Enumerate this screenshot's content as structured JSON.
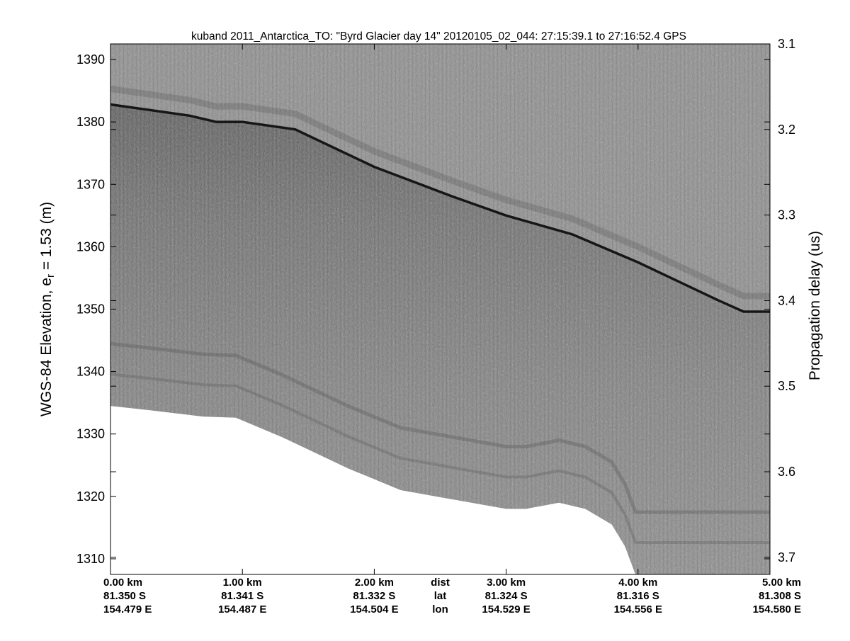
{
  "chart_data": {
    "type": "heatmap",
    "title": "kuband 2011_Antarctica_TO: \"Byrd Glacier day 14\"  20120105_02_044: 27:15:39.1 to 27:16:52.4 GPS",
    "ylabel_left_prefix": "WGS-84 Elevation, e",
    "ylabel_left_subscript": "r",
    "ylabel_left_suffix": " = 1.53 (m)",
    "ylabel_right": "Propagation delay (us)",
    "xlim_km": [
      0,
      5.0
    ],
    "ylim_left": [
      1307.5,
      1392.5
    ],
    "ylim_right": [
      3.1,
      3.72
    ],
    "yticks_left": [
      1310,
      1320,
      1330,
      1340,
      1350,
      1360,
      1370,
      1380,
      1390
    ],
    "yticks_right": [
      3.1,
      3.2,
      3.3,
      3.4,
      3.5,
      3.6,
      3.7
    ],
    "yticks_right_labels": [
      "3.1",
      "3.2",
      "3.3",
      "3.4",
      "3.5",
      "3.6",
      "3.7"
    ],
    "xticks": [
      {
        "km": 0.0,
        "dist": "0.00 km",
        "lat": "81.350 S",
        "lon": "154.479 E"
      },
      {
        "km": 1.0,
        "dist": "1.00 km",
        "lat": "81.341 S",
        "lon": "154.487 E"
      },
      {
        "km": 2.0,
        "dist": "2.00 km",
        "lat": "81.332 S",
        "lon": "154.504 E"
      },
      {
        "km": 3.0,
        "dist": "3.00 km",
        "lat": "81.324 S",
        "lon": "154.529 E"
      },
      {
        "km": 4.0,
        "dist": "4.00 km",
        "lat": "81.316 S",
        "lon": "154.556 E"
      },
      {
        "km": 5.0,
        "dist": "5.00 km",
        "lat": "81.308 S",
        "lon": "154.580 E"
      }
    ],
    "row_keys": {
      "km": 2.5,
      "dist": "dist",
      "lat": "lat",
      "lon": "lon"
    },
    "surface_elevation": [
      {
        "km": 0.0,
        "elev": 1382.8
      },
      {
        "km": 0.6,
        "elev": 1381.0
      },
      {
        "km": 0.8,
        "elev": 1380.0
      },
      {
        "km": 1.0,
        "elev": 1380.0
      },
      {
        "km": 1.4,
        "elev": 1378.8
      },
      {
        "km": 2.0,
        "elev": 1372.8
      },
      {
        "km": 2.6,
        "elev": 1368.0
      },
      {
        "km": 3.0,
        "elev": 1365.0
      },
      {
        "km": 3.5,
        "elev": 1362.0
      },
      {
        "km": 4.0,
        "elev": 1357.5
      },
      {
        "km": 4.6,
        "elev": 1351.5
      },
      {
        "km": 4.8,
        "elev": 1349.6
      },
      {
        "km": 5.0,
        "elev": 1349.6
      }
    ],
    "data_floor_elevation": [
      {
        "km": 0.0,
        "elev": 1334.5
      },
      {
        "km": 0.3,
        "elev": 1333.8
      },
      {
        "km": 0.7,
        "elev": 1332.8
      },
      {
        "km": 0.95,
        "elev": 1332.6
      },
      {
        "km": 1.3,
        "elev": 1329.5
      },
      {
        "km": 1.8,
        "elev": 1324.5
      },
      {
        "km": 2.2,
        "elev": 1321.0
      },
      {
        "km": 2.6,
        "elev": 1319.5
      },
      {
        "km": 3.0,
        "elev": 1318.0
      },
      {
        "km": 3.15,
        "elev": 1318.0
      },
      {
        "km": 3.4,
        "elev": 1319.0
      },
      {
        "km": 3.6,
        "elev": 1318.0
      },
      {
        "km": 3.8,
        "elev": 1315.5
      },
      {
        "km": 3.9,
        "elev": 1312.0
      },
      {
        "km": 3.98,
        "elev": 1307.5
      },
      {
        "km": 5.0,
        "elev": 1307.5
      }
    ],
    "colormap": "gray",
    "grid": false
  }
}
